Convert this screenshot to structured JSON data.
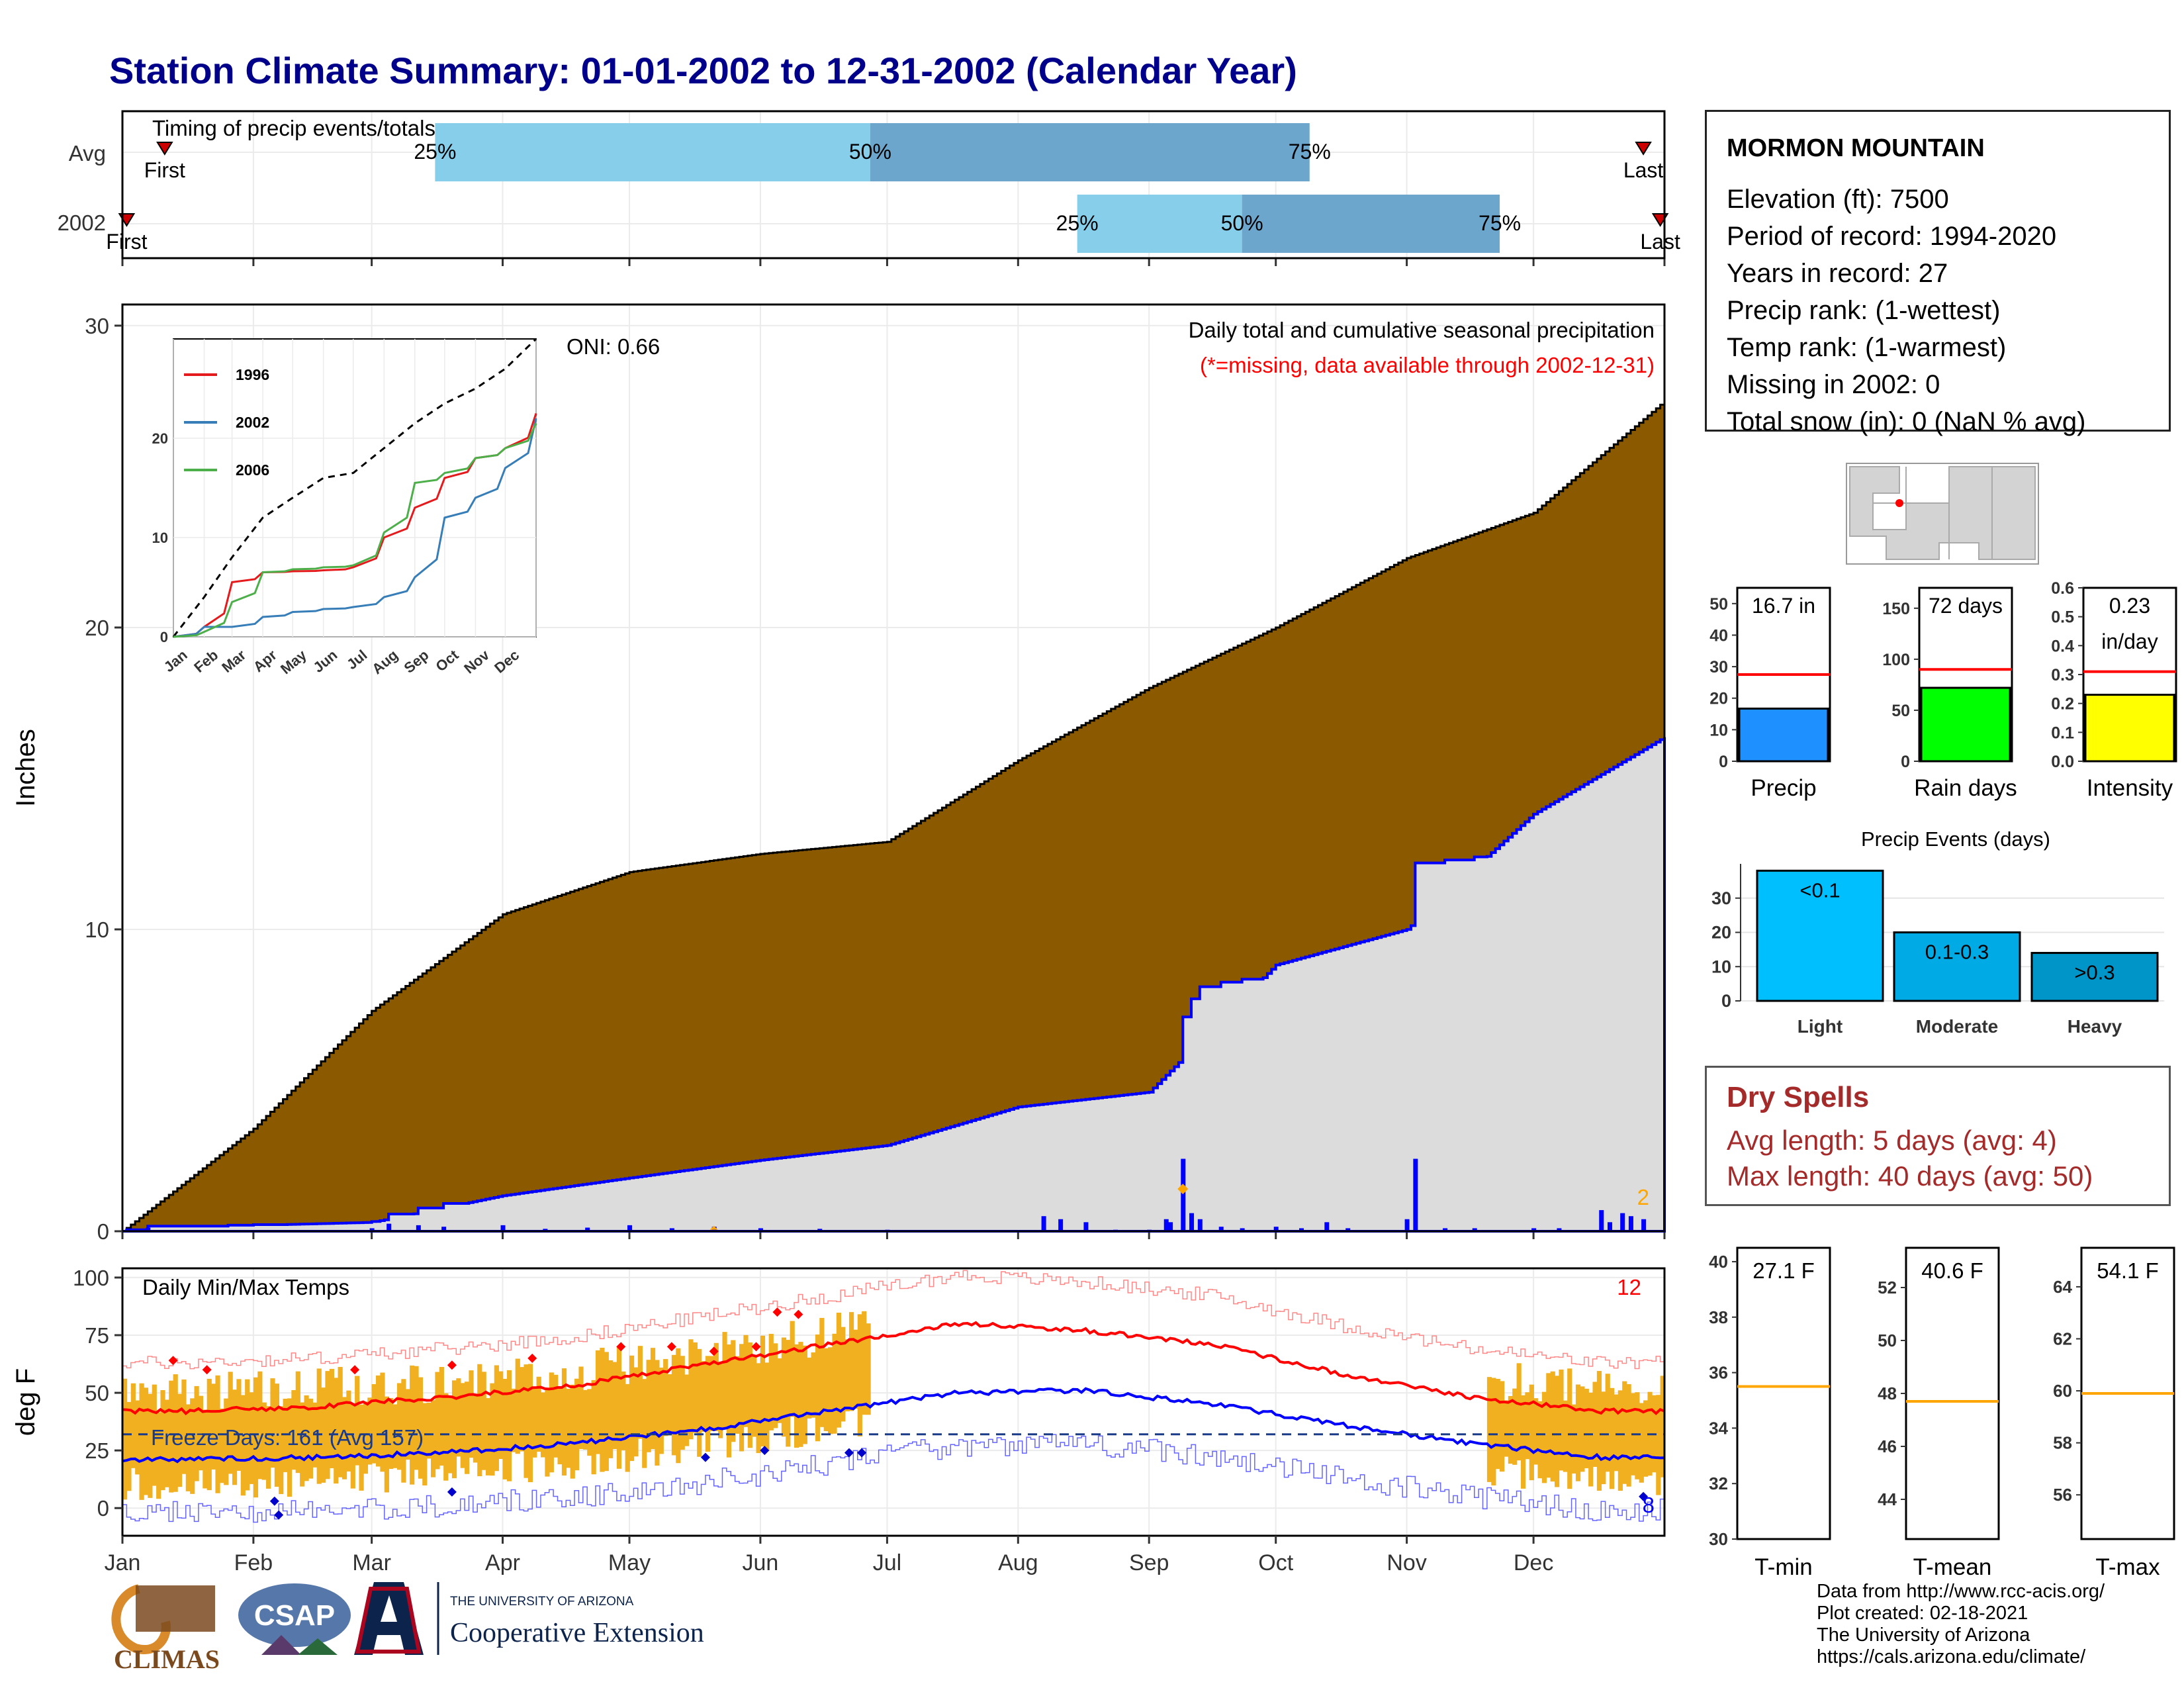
{
  "title": "Station Climate Summary: 01-01-2002 to 12-31-2002 (Calendar Year)",
  "colors": {
    "title": "#00008b",
    "cum_avg_fill": "#8b5a00",
    "cum_year_fill": "#dcdcdc",
    "cum_year_line": "#0000ff",
    "daily_bar": "#0000ff",
    "timing_light": "#87ceeb",
    "timing_dark": "#6ca6cd",
    "temp_bar": "#f0b020",
    "temp_max_avg": "#ff0000",
    "temp_min_avg": "#0000ff",
    "precip_bar": "#1e90ff",
    "raindays_bar": "#00ff00",
    "intensity_bar": "#ffff00",
    "light_bar": "#00bfff",
    "moderate_bar": "#00aae4",
    "heavy_bar": "#0095c8",
    "dry_text": "#a52a2a",
    "temp_avg_line": "#ffa500"
  },
  "timing": {
    "panel_title": "Timing of precip events/totals",
    "row_labels": [
      "Avg",
      "2002"
    ],
    "avg": {
      "first_label": "First",
      "last_label": "Last",
      "first_doy": 10,
      "last_doy": 360,
      "p25_doy": 74,
      "p50_doy": 177,
      "p75_doy": 281
    },
    "year": {
      "first_label": "First",
      "last_label": "Last",
      "first_doy": 1,
      "last_doy": 364,
      "p25_doy": 226,
      "p50_doy": 265,
      "p75_doy": 326
    },
    "pct_labels": [
      "25%",
      "50%",
      "75%"
    ]
  },
  "precip_panel": {
    "ylabel": "Inches",
    "yticks": [
      "0",
      "10",
      "20",
      "30"
    ],
    "caption": "Daily total and cumulative seasonal precipitation",
    "missing_note": "(*=missing, data available through 2002-12-31)",
    "oni": "ONI: 0.66",
    "corner_count": "2"
  },
  "inset": {
    "legend": [
      "1996",
      "2002",
      "2006"
    ],
    "yticks": [
      "0",
      "10",
      "20"
    ],
    "months": [
      "Jan",
      "Feb",
      "Mar",
      "Apr",
      "May",
      "Jun",
      "Jul",
      "Aug",
      "Sep",
      "Oct",
      "Nov",
      "Dec"
    ]
  },
  "temp_panel": {
    "ylabel": "deg F",
    "title": "Daily Min/Max Temps",
    "freeze_label": "Freeze Days: 161 (Avg 157)",
    "max_count": "12",
    "min_count": "8",
    "yticks": [
      "0",
      "25",
      "50",
      "75",
      "100"
    ]
  },
  "months": [
    "Jan",
    "Feb",
    "Mar",
    "Apr",
    "May",
    "Jun",
    "Jul",
    "Aug",
    "Sep",
    "Oct",
    "Nov",
    "Dec"
  ],
  "station": {
    "name": "MORMON MOUNTAIN",
    "elevation": "Elevation (ft): 7500",
    "period": "Period of record: 1994-2020",
    "years": "Years in record: 27",
    "precip_rank": "Precip rank:  (1-wettest)",
    "temp_rank": "Temp rank:  (1-warmest)",
    "missing": "Missing in 2002: 0",
    "snow": "Total snow (in): 0 (NaN % avg)"
  },
  "mini_bars": [
    {
      "label": "Precip",
      "value_text": "16.7 in",
      "yticks": [
        "0",
        "10",
        "20",
        "30",
        "40",
        "50"
      ]
    },
    {
      "label": "Rain days",
      "value_text": "72 days",
      "yticks": [
        "0",
        "50",
        "100",
        "150"
      ]
    },
    {
      "label": "Intensity",
      "value_text": "0.23",
      "unit": "in/day",
      "yticks": [
        "0.0",
        "0.1",
        "0.2",
        "0.3",
        "0.4",
        "0.5",
        "0.6"
      ]
    }
  ],
  "events": {
    "title": "Precip Events (days)",
    "yticks": [
      "0",
      "10",
      "20",
      "30"
    ],
    "categories": [
      "Light",
      "Moderate",
      "Heavy"
    ],
    "bar_labels": [
      "<0.1",
      "0.1-0.3",
      ">0.3"
    ]
  },
  "dry": {
    "title": "Dry Spells",
    "avg": "Avg length: 5 days (avg: 4)",
    "max": "Max length: 40 days (avg: 50)"
  },
  "temp_bars": [
    {
      "label": "T-min",
      "value_text": "27.1 F",
      "yticks": [
        "30",
        "32",
        "34",
        "36",
        "38",
        "40"
      ]
    },
    {
      "label": "T-mean",
      "value_text": "40.6 F",
      "yticks": [
        "44",
        "46",
        "48",
        "50",
        "52"
      ]
    },
    {
      "label": "T-max",
      "value_text": "54.1 F",
      "yticks": [
        "56",
        "58",
        "60",
        "62",
        "64"
      ]
    }
  ],
  "footer": {
    "line1": "Data from http://www.rcc-acis.org/",
    "line2": "Plot created: 02-18-2021",
    "line3": "The University of Arizona",
    "line4": "https://cals.arizona.edu/climate/"
  },
  "logos": {
    "climas": "CLIMAS",
    "csap": "CSAP",
    "ua_small": "THE UNIVERSITY OF ARIZONA",
    "ua_big": "Cooperative Extension"
  },
  "chart_data": [
    {
      "type": "area",
      "title": "Daily total and cumulative seasonal precipitation",
      "ylabel": "Inches",
      "ylim": [
        0,
        30
      ],
      "x_unit": "day of year 2002",
      "series": [
        {
          "values_at_month_start": [
            0,
            3.4,
            7.3,
            10.5,
            11.9,
            12.5,
            12.9,
            15.6,
            18.0,
            20.0,
            22.3,
            23.8,
            27.5
          ]
        },
        {
          "values_at_month_start": [
            0,
            0.2,
            0.3,
            1.2,
            1.8,
            2.4,
            2.9,
            4.2,
            4.7,
            9.0,
            10.2,
            14.1,
            16.7
          ]
        }
      ]
    },
    {
      "type": "line",
      "title": "Daily Min/Max Temps",
      "ylabel": "deg F",
      "ylim": [
        -10,
        100
      ],
      "series": [
        {
          "values_monthly": [
            42,
            44,
            48,
            53,
            62,
            71,
            80,
            77,
            71,
            58,
            48,
            42
          ]
        },
        {
          "values_monthly": [
            21,
            22,
            24,
            28,
            34,
            42,
            50,
            51,
            45,
            36,
            28,
            22
          ]
        }
      ]
    },
    {
      "type": "bar",
      "title": "Precip Events (days)",
      "categories": [
        "Light",
        "Moderate",
        "Heavy"
      ],
      "values": [
        38,
        20,
        14
      ],
      "ylim": [
        0,
        40
      ]
    },
    {
      "type": "bar",
      "categories": [
        "Precip",
        "Rain days",
        "Intensity"
      ],
      "values": [
        16.7,
        72,
        0.23
      ],
      "reference_avg": [
        27.5,
        90,
        0.31
      ]
    },
    {
      "type": "bar",
      "categories": [
        "T-min",
        "T-mean",
        "T-max"
      ],
      "values": [
        27.1,
        40.6,
        54.1
      ],
      "reference_avg": [
        35.5,
        47.7,
        59.9
      ]
    }
  ]
}
